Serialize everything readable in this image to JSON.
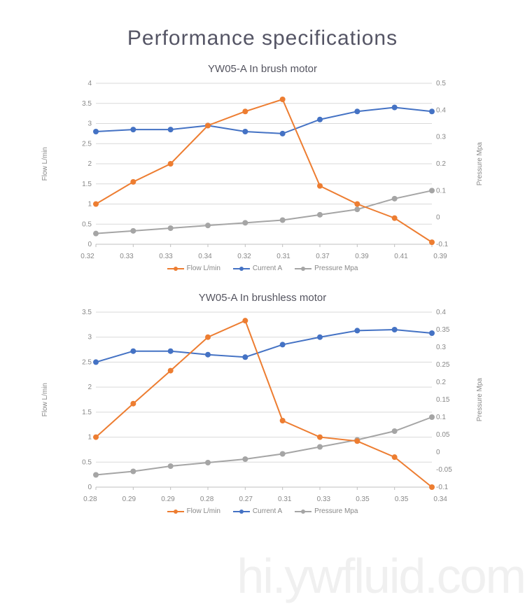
{
  "page": {
    "title": "Performance specifications",
    "title_fontsize": 30,
    "title_color": "#555565",
    "background": "#ffffff",
    "watermark": "hi.ywfluid.com",
    "watermark_color": "#f0f0f0"
  },
  "chart1": {
    "type": "line",
    "title": "YW05-A In brush motor",
    "title_fontsize": 15,
    "y1_label": "Flow L/min",
    "y2_label": "Pressure Mpa",
    "label_fontsize": 10,
    "y1_min": 0,
    "y1_max": 4,
    "y1_step": 0.5,
    "y2_min": -0.1,
    "y2_max": 0.5,
    "y2_step": 0.1,
    "x_labels": [
      "0.32",
      "0.33",
      "0.33",
      "0.34",
      "0.32",
      "0.31",
      "0.37",
      "0.39",
      "0.41",
      "0.39"
    ],
    "grid_color": "#d9d9d9",
    "axis_color": "#bfbfbf",
    "tick_color": "#888888",
    "series": {
      "flow": {
        "name": "Flow L/min",
        "color": "#ed7d31",
        "axis": "y1",
        "data": [
          1.0,
          1.55,
          2.0,
          2.95,
          3.3,
          3.6,
          1.45,
          1.0,
          0.65,
          0.05
        ]
      },
      "current": {
        "name": "Current A",
        "color": "#4472c4",
        "axis": "y1",
        "data": [
          2.8,
          2.85,
          2.85,
          2.95,
          2.8,
          2.75,
          3.1,
          3.3,
          3.4,
          3.3
        ]
      },
      "pressure": {
        "name": "Pressure Mpa",
        "color": "#a5a5a5",
        "axis": "y2",
        "data": [
          -0.06,
          -0.05,
          -0.04,
          -0.03,
          -0.02,
          -0.01,
          0.01,
          0.03,
          0.07,
          0.1
        ]
      }
    },
    "marker_radius": 4,
    "line_width": 2
  },
  "chart2": {
    "type": "line",
    "title": "YW05-A In brushless motor",
    "title_fontsize": 15,
    "y1_label": "Flow L/min",
    "y2_label": "Pressure Mpa",
    "label_fontsize": 10,
    "y1_min": 0,
    "y1_max": 3.5,
    "y1_step": 0.5,
    "y2_min": -0.1,
    "y2_max": 0.4,
    "y2_step": 0.05,
    "x_labels": [
      "0.28",
      "0.29",
      "0.29",
      "0.28",
      "0.27",
      "0.31",
      "0.33",
      "0.35",
      "0.35",
      "0.34"
    ],
    "grid_color": "#d9d9d9",
    "axis_color": "#bfbfbf",
    "tick_color": "#888888",
    "series": {
      "flow": {
        "name": "Flow L/min",
        "color": "#ed7d31",
        "axis": "y1",
        "data": [
          1.0,
          1.67,
          2.33,
          3.0,
          3.33,
          1.33,
          1.0,
          0.92,
          0.6,
          0.0
        ]
      },
      "current": {
        "name": "Current A",
        "color": "#4472c4",
        "axis": "y1",
        "data": [
          2.5,
          2.72,
          2.72,
          2.65,
          2.6,
          2.85,
          3.0,
          3.13,
          3.15,
          3.08
        ]
      },
      "pressure": {
        "name": "Pressure Mpa",
        "color": "#a5a5a5",
        "axis": "y2",
        "data": [
          -0.065,
          -0.055,
          -0.04,
          -0.03,
          -0.02,
          -0.005,
          0.015,
          0.035,
          0.06,
          0.1
        ]
      }
    },
    "marker_radius": 4,
    "line_width": 2
  }
}
